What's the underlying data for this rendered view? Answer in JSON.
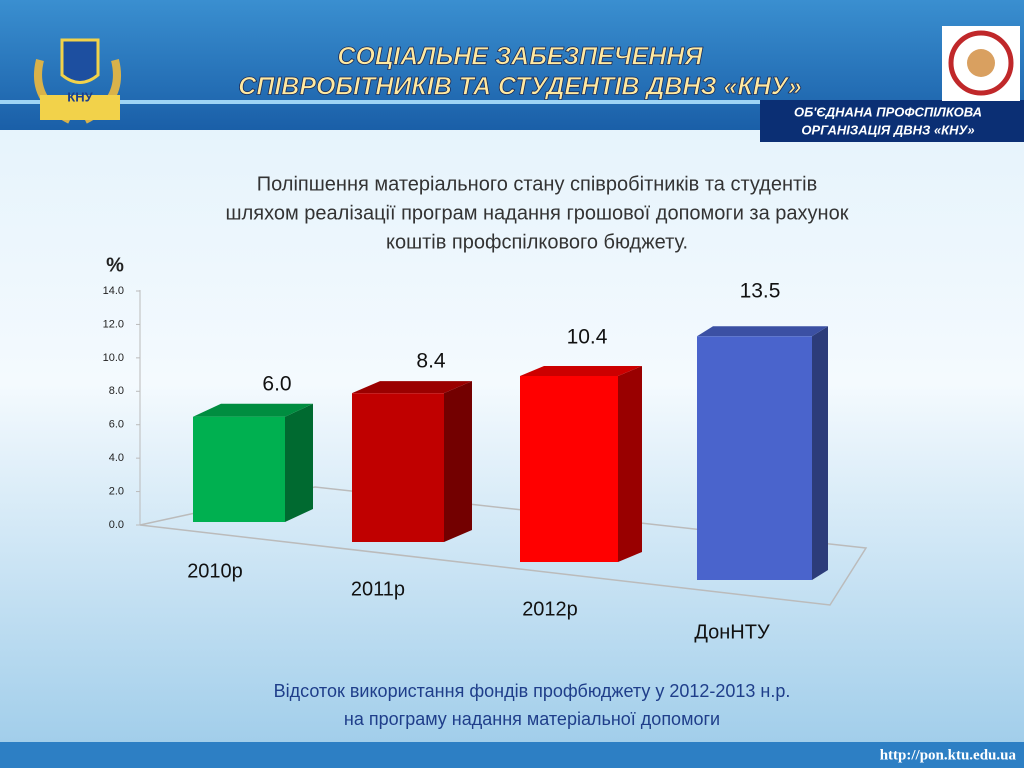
{
  "header": {
    "title_lines": [
      "СОЦІАЛЬНЕ ЗАБЕЗПЕЧЕННЯ",
      "СПІВРОБІТНИКІВ ТА СТУДЕНТІВ ДВНЗ «КНУ»"
    ],
    "logo_text": "КНУ",
    "org_lines": [
      "ОБ'ЄДНАНА ПРОФСПІЛКОВА",
      "ОРГАНІЗАЦІЯ ДВНЗ «КНУ»"
    ]
  },
  "chart_data": {
    "type": "bar3d",
    "subtitle_lines": [
      "Поліпшення матеріального стану співробітників та студентів",
      "шляхом реалізації програм надання грошової допомоги за рахунок",
      "коштів профспілкового бюджету."
    ],
    "y_label": "%",
    "categories": [
      "2010р",
      "2011р",
      "2012р",
      "ДонНТУ"
    ],
    "values": [
      6.0,
      8.4,
      10.4,
      13.5
    ],
    "value_labels": [
      "6.0",
      "8.4",
      "10.4",
      "13.5"
    ],
    "colors": [
      "#00b050",
      "#c00000",
      "#ff0000",
      "#4a64cc"
    ],
    "ylim": [
      0,
      14
    ],
    "yticks": [
      {
        "value": 0,
        "label": "0.0"
      },
      {
        "value": 2,
        "label": "2.0"
      },
      {
        "value": 4,
        "label": "4.0"
      },
      {
        "value": 6,
        "label": "6.0"
      },
      {
        "value": 8,
        "label": "8.0"
      },
      {
        "value": 10,
        "label": "10.0"
      },
      {
        "value": 12,
        "label": "12.0"
      },
      {
        "value": 14,
        "label": "14.0"
      }
    ]
  },
  "footer": {
    "caption_lines": [
      "Відсоток використання фондів профбюджету у 2012-2013 н.р.",
      "на програму надання матеріальної допомоги"
    ],
    "url": "http://pon.ktu.edu.ua"
  }
}
